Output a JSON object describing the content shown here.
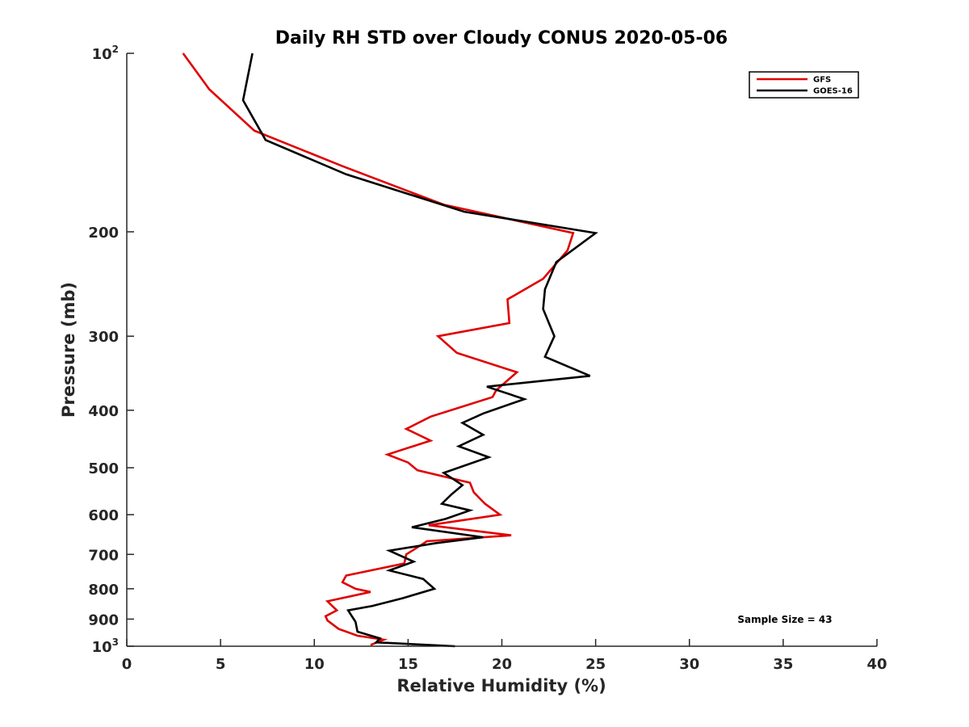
{
  "chart_data": {
    "type": "line",
    "title": "Daily RH STD over Cloudy CONUS 2020-05-06",
    "xlabel": "Relative Humidity (%)",
    "ylabel": "Pressure (mb)",
    "xlim": [
      0,
      40
    ],
    "ylim": [
      100,
      1000
    ],
    "y_scale": "log",
    "y_reversed": true,
    "x_ticks": [
      0,
      5,
      10,
      15,
      20,
      25,
      30,
      35,
      40
    ],
    "y_ticks": [
      {
        "value": 100,
        "label": "10",
        "sup": "2"
      },
      {
        "value": 200,
        "label": "200",
        "sup": ""
      },
      {
        "value": 300,
        "label": "300",
        "sup": ""
      },
      {
        "value": 400,
        "label": "400",
        "sup": ""
      },
      {
        "value": 500,
        "label": "500",
        "sup": ""
      },
      {
        "value": 600,
        "label": "600",
        "sup": ""
      },
      {
        "value": 700,
        "label": "700",
        "sup": ""
      },
      {
        "value": 800,
        "label": "800",
        "sup": ""
      },
      {
        "value": 900,
        "label": "900",
        "sup": ""
      },
      {
        "value": 1000,
        "label": "10",
        "sup": "3"
      }
    ],
    "legend_position": "top-right",
    "annotation": "Sample Size = 43",
    "series": [
      {
        "name": "GFS",
        "color": "#e00000",
        "points": [
          [
            3.0,
            100
          ],
          [
            4.4,
            115
          ],
          [
            6.8,
            135
          ],
          [
            11.5,
            155
          ],
          [
            16.9,
            180
          ],
          [
            23.8,
            201
          ],
          [
            23.5,
            215
          ],
          [
            22.2,
            240
          ],
          [
            20.3,
            260
          ],
          [
            20.4,
            285
          ],
          [
            16.6,
            300
          ],
          [
            17.6,
            320
          ],
          [
            20.8,
            345
          ],
          [
            19.7,
            370
          ],
          [
            19.5,
            380
          ],
          [
            16.2,
            410
          ],
          [
            14.9,
            430
          ],
          [
            16.2,
            450
          ],
          [
            13.9,
            475
          ],
          [
            15.0,
            490
          ],
          [
            15.5,
            505
          ],
          [
            18.3,
            530
          ],
          [
            18.5,
            550
          ],
          [
            19.1,
            575
          ],
          [
            19.9,
            600
          ],
          [
            16.1,
            625
          ],
          [
            20.5,
            650
          ],
          [
            16.0,
            665
          ],
          [
            15.7,
            675
          ],
          [
            14.9,
            700
          ],
          [
            14.8,
            725
          ],
          [
            11.7,
            760
          ],
          [
            11.5,
            780
          ],
          [
            12.2,
            800
          ],
          [
            13.0,
            810
          ],
          [
            10.7,
            840
          ],
          [
            11.2,
            870
          ],
          [
            10.6,
            890
          ],
          [
            10.7,
            905
          ],
          [
            11.3,
            935
          ],
          [
            12.3,
            960
          ],
          [
            13.7,
            975
          ],
          [
            13.0,
            995
          ]
        ]
      },
      {
        "name": "GOES-16",
        "color": "#000000",
        "points": [
          [
            6.7,
            100
          ],
          [
            6.2,
            120
          ],
          [
            7.4,
            140
          ],
          [
            11.7,
            160
          ],
          [
            18.0,
            185
          ],
          [
            25.0,
            201
          ],
          [
            22.9,
            225
          ],
          [
            22.3,
            250
          ],
          [
            22.2,
            270
          ],
          [
            22.8,
            300
          ],
          [
            22.3,
            325
          ],
          [
            24.7,
            350
          ],
          [
            19.2,
            365
          ],
          [
            21.2,
            383
          ],
          [
            19.0,
            405
          ],
          [
            17.9,
            420
          ],
          [
            19.0,
            440
          ],
          [
            17.7,
            460
          ],
          [
            19.3,
            480
          ],
          [
            16.9,
            510
          ],
          [
            17.9,
            535
          ],
          [
            17.3,
            555
          ],
          [
            16.8,
            575
          ],
          [
            18.3,
            590
          ],
          [
            17.0,
            610
          ],
          [
            15.2,
            630
          ],
          [
            19.0,
            655
          ],
          [
            16.5,
            670
          ],
          [
            14.0,
            690
          ],
          [
            15.3,
            720
          ],
          [
            14.0,
            745
          ],
          [
            15.8,
            770
          ],
          [
            16.4,
            800
          ],
          [
            14.7,
            830
          ],
          [
            13.1,
            855
          ],
          [
            11.8,
            870
          ],
          [
            12.2,
            910
          ],
          [
            12.3,
            945
          ],
          [
            13.5,
            970
          ],
          [
            13.3,
            985
          ],
          [
            17.5,
            1000
          ]
        ]
      }
    ]
  }
}
